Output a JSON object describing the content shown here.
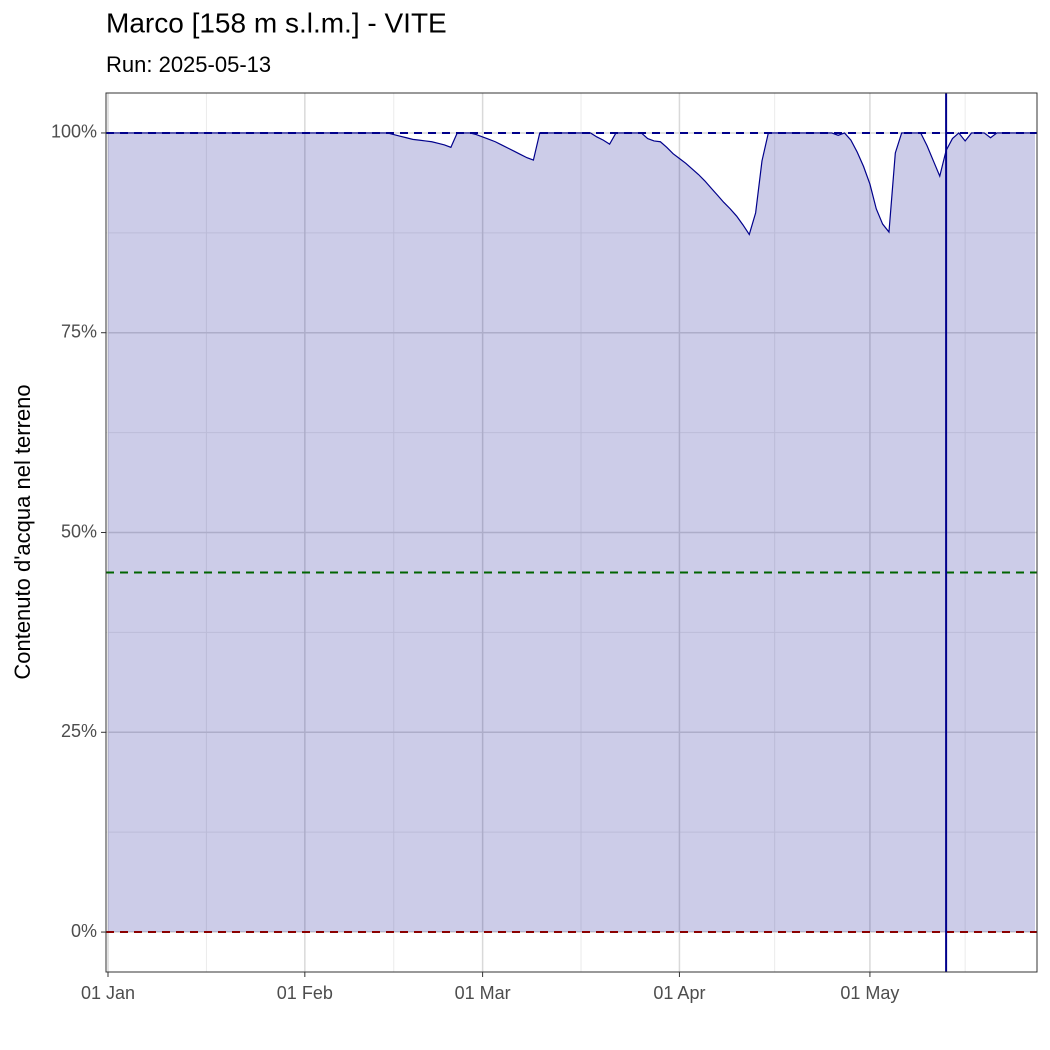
{
  "chart_data": {
    "type": "area",
    "title": "Marco [158 m s.l.m.] - VITE",
    "subtitle": "Run: 2025-05-13",
    "ylabel": "Contenuto d'acqua nel terreno",
    "color": "#00008b",
    "fill": "#00008b",
    "fill_opacity": 0.2,
    "grid": true,
    "xlim": [
      "01-01",
      "05-27"
    ],
    "xticks": [
      {
        "value": "01-01",
        "label": "01 Jan"
      },
      {
        "value": "02-01",
        "label": "01 Feb"
      },
      {
        "value": "03-01",
        "label": "01 Mar"
      },
      {
        "value": "04-01",
        "label": "01 Apr"
      },
      {
        "value": "05-01",
        "label": "01 May"
      }
    ],
    "ylim": [
      -5,
      105
    ],
    "yticks": [
      {
        "value": 0,
        "label": "0%"
      },
      {
        "value": 25,
        "label": "25%"
      },
      {
        "value": 50,
        "label": "50%"
      },
      {
        "value": 75,
        "label": "75%"
      },
      {
        "value": 100,
        "label": "100%"
      }
    ],
    "hlines": [
      {
        "value": 100,
        "color": "#00008b"
      },
      {
        "value": 45,
        "color": "#006400"
      },
      {
        "value": 0,
        "color": "#8b0000"
      }
    ],
    "vline": {
      "value": "05-13",
      "color": "#00008b"
    },
    "x": [
      "01-01",
      "01-02",
      "01-03",
      "01-04",
      "01-05",
      "01-06",
      "01-07",
      "01-08",
      "01-09",
      "01-10",
      "01-11",
      "01-12",
      "01-13",
      "01-14",
      "01-15",
      "01-16",
      "01-17",
      "01-18",
      "01-19",
      "01-20",
      "01-21",
      "01-22",
      "01-23",
      "01-24",
      "01-25",
      "01-26",
      "01-27",
      "01-28",
      "01-29",
      "01-30",
      "01-31",
      "02-01",
      "02-02",
      "02-03",
      "02-04",
      "02-05",
      "02-06",
      "02-07",
      "02-08",
      "02-09",
      "02-10",
      "02-11",
      "02-12",
      "02-13",
      "02-14",
      "02-15",
      "02-16",
      "02-17",
      "02-18",
      "02-19",
      "02-20",
      "02-21",
      "02-22",
      "02-23",
      "02-24",
      "02-25",
      "02-26",
      "02-27",
      "02-28",
      "03-01",
      "03-02",
      "03-03",
      "03-04",
      "03-05",
      "03-06",
      "03-07",
      "03-08",
      "03-09",
      "03-10",
      "03-11",
      "03-12",
      "03-13",
      "03-14",
      "03-15",
      "03-16",
      "03-17",
      "03-18",
      "03-19",
      "03-20",
      "03-21",
      "03-22",
      "03-23",
      "03-24",
      "03-25",
      "03-26",
      "03-27",
      "03-28",
      "03-29",
      "03-30",
      "03-31",
      "04-01",
      "04-02",
      "04-03",
      "04-04",
      "04-05",
      "04-06",
      "04-07",
      "04-08",
      "04-09",
      "04-10",
      "04-11",
      "04-12",
      "04-13",
      "04-14",
      "04-15",
      "04-16",
      "04-17",
      "04-18",
      "04-19",
      "04-20",
      "04-21",
      "04-22",
      "04-23",
      "04-24",
      "04-25",
      "04-26",
      "04-27",
      "04-28",
      "04-29",
      "04-30",
      "05-01",
      "05-02",
      "05-03",
      "05-04",
      "05-05",
      "05-06",
      "05-07",
      "05-08",
      "05-09",
      "05-10",
      "05-11",
      "05-12",
      "05-13",
      "05-14",
      "05-15",
      "05-16",
      "05-17",
      "05-18",
      "05-19",
      "05-20",
      "05-21",
      "05-22",
      "05-23",
      "05-24",
      "05-25",
      "05-26",
      "05-27"
    ],
    "values": [
      100,
      100,
      100,
      100,
      100,
      100,
      100,
      100,
      100,
      100,
      100,
      100,
      100,
      100,
      100,
      100,
      100,
      100,
      100,
      100,
      100,
      100,
      100,
      100,
      100,
      100,
      100,
      100,
      100,
      100,
      100,
      100,
      100,
      100,
      100,
      100,
      100,
      100,
      100,
      100,
      100,
      100,
      100,
      100,
      100,
      99.8,
      99.6,
      99.4,
      99.2,
      99.1,
      99.0,
      98.9,
      98.7,
      98.5,
      98.2,
      100,
      100,
      100,
      99.8,
      99.5,
      99.2,
      98.9,
      98.5,
      98.1,
      97.7,
      97.3,
      96.9,
      96.6,
      100,
      100,
      100,
      100,
      100,
      100,
      100,
      100,
      100,
      99.5,
      99.1,
      98.6,
      100,
      100,
      100,
      100,
      100,
      99.3,
      99.0,
      98.9,
      98.2,
      97.4,
      96.8,
      96.2,
      95.5,
      94.8,
      94.0,
      93.1,
      92.2,
      91.3,
      90.5,
      89.6,
      88.5,
      87.3,
      90.0,
      96.5,
      100,
      100,
      100,
      100,
      100,
      100,
      100,
      100,
      100,
      100,
      100,
      99.7,
      100,
      99.1,
      97.6,
      95.8,
      93.6,
      90.5,
      88.6,
      87.6,
      97.5,
      100,
      100,
      100,
      100,
      98.4,
      96.5,
      94.6,
      97.8,
      99.3,
      100,
      99.0,
      100,
      100,
      100,
      99.4,
      100,
      100,
      100,
      100,
      100,
      100,
      100
    ]
  }
}
